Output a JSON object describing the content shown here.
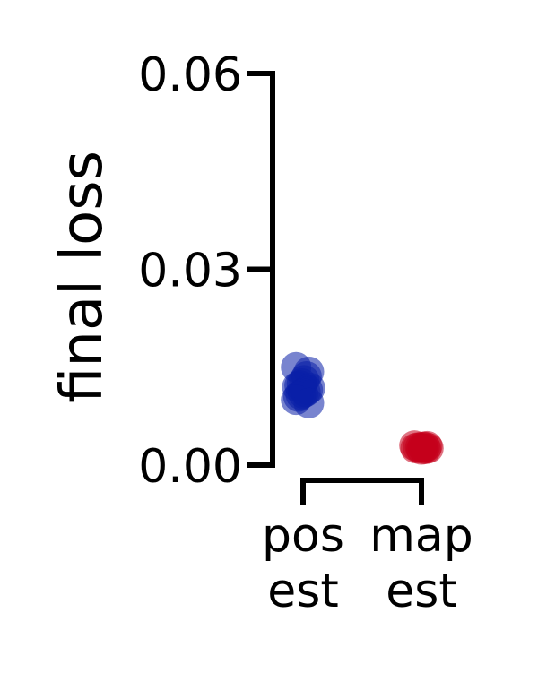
{
  "chart_data": {
    "type": "scatter",
    "ylabel": "final loss",
    "ylim": [
      0,
      0.06
    ],
    "yticks": [
      "0.00",
      "0.03",
      "0.06"
    ],
    "categories": [
      {
        "lines": [
          "pos",
          "est"
        ]
      },
      {
        "lines": [
          "map",
          "est"
        ]
      }
    ],
    "series": [
      {
        "category": 0,
        "color": "#0a1fa8",
        "values": [
          0.015,
          0.0143,
          0.0136,
          0.013,
          0.0125,
          0.0122,
          0.012,
          0.0118,
          0.0115,
          0.0112,
          0.011,
          0.0108,
          0.0105,
          0.01,
          0.0095
        ]
      },
      {
        "category": 1,
        "color": "#c4001c",
        "values": [
          0.003,
          0.0029,
          0.0028,
          0.0028,
          0.0027,
          0.0027,
          0.0026,
          0.0026,
          0.0025,
          0.0025,
          0.0024
        ]
      }
    ]
  }
}
